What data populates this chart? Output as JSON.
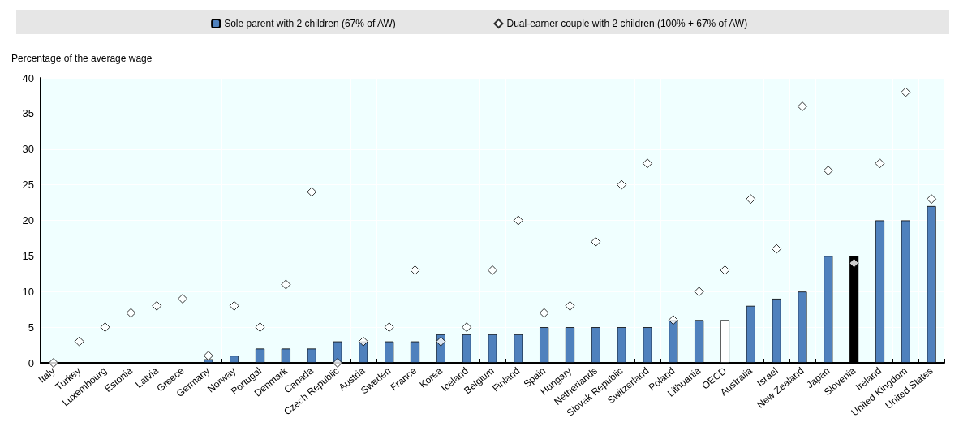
{
  "chart_data": {
    "type": "bar",
    "ylabel": "Percentage of the average wage",
    "categories": [
      "Italy",
      "Turkey",
      "Luxembourg",
      "Estonia",
      "Latvia",
      "Greece",
      "Germany",
      "Norway",
      "Portugal",
      "Denmark",
      "Canada",
      "Czech Republic",
      "Austria",
      "Sweden",
      "France",
      "Korea",
      "Iceland",
      "Belgium",
      "Finland",
      "Spain",
      "Hungary",
      "Netherlands",
      "Slovak Republic",
      "Switzerland",
      "Poland",
      "Lithuania",
      "OECD",
      "Australia",
      "Israel",
      "New Zealand",
      "Japan",
      "Slovenia",
      "Ireland",
      "United Kingdom",
      "United States"
    ],
    "series": [
      {
        "name": "Sole parent with 2 children (67% of AW)",
        "color": "#4f81bd",
        "colors": [
          "#4f81bd",
          "#4f81bd",
          "#4f81bd",
          "#4f81bd",
          "#4f81bd",
          "#4f81bd",
          "#4f81bd",
          "#4f81bd",
          "#4f81bd",
          "#4f81bd",
          "#4f81bd",
          "#4f81bd",
          "#4f81bd",
          "#4f81bd",
          "#4f81bd",
          "#4f81bd",
          "#4f81bd",
          "#4f81bd",
          "#4f81bd",
          "#4f81bd",
          "#4f81bd",
          "#4f81bd",
          "#4f81bd",
          "#4f81bd",
          "#4f81bd",
          "#4f81bd",
          "#ffffff",
          "#4f81bd",
          "#4f81bd",
          "#4f81bd",
          "#4f81bd",
          "#000000",
          "#4f81bd",
          "#4f81bd",
          "#4f81bd"
        ],
        "values": [
          0,
          0,
          0,
          0,
          0,
          0,
          0.5,
          1,
          2,
          2,
          2,
          3,
          3,
          3,
          3,
          4,
          4,
          4,
          4,
          5,
          5,
          5,
          5,
          5,
          6,
          6,
          6,
          8,
          9,
          10,
          15,
          15,
          20,
          20,
          22
        ]
      },
      {
        "name": "Dual-earner couple with 2 children (100% + 67% of AW)",
        "type": "scatter",
        "marker": "diamond",
        "color": "#ffffff",
        "values": [
          0,
          3,
          5,
          7,
          8,
          9,
          1,
          8,
          5,
          11,
          24,
          0,
          3,
          5,
          13,
          3,
          5,
          13,
          20,
          7,
          8,
          17,
          25,
          28,
          6,
          10,
          13,
          23,
          16,
          36,
          27,
          14,
          28,
          38,
          23
        ]
      }
    ],
    "ylim": [
      0,
      40
    ],
    "yticks": [
      0,
      5,
      10,
      15,
      20,
      25,
      30,
      35,
      40
    ],
    "grid": true,
    "legend": "top"
  }
}
